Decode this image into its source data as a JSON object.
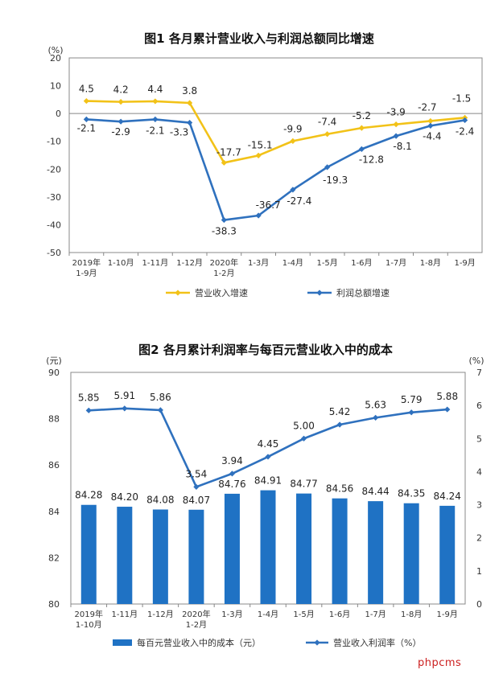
{
  "watermark": "phpcms",
  "chart_data": [
    {
      "type": "line",
      "title": "图1  各月累计营业收入与利润总额同比增速",
      "yunit": "(%)",
      "ylim": [
        -50,
        20
      ],
      "yticks": [
        20,
        10,
        0,
        -10,
        -20,
        -30,
        -40,
        -50
      ],
      "categories": [
        "2019年\n1-9月",
        "1-10月",
        "1-11月",
        "1-12月",
        "2020年\n1-2月",
        "1-3月",
        "1-4月",
        "1-5月",
        "1-6月",
        "1-7月",
        "1-8月",
        "1-9月"
      ],
      "series": [
        {
          "name": "营业收入增速",
          "color": "#f2c218",
          "values": [
            4.5,
            4.2,
            4.4,
            3.8,
            -17.7,
            -15.1,
            -9.9,
            -7.4,
            -5.2,
            -3.9,
            -2.7,
            -1.5
          ],
          "labels": [
            "4.5",
            "4.2",
            "4.4",
            "3.8",
            "-17.7",
            "-15.1",
            "-9.9",
            "-7.4",
            "-5.2",
            "-3.9",
            "-2.7",
            "-1.5"
          ]
        },
        {
          "name": "利润总额增速",
          "color": "#2f71be",
          "values": [
            -2.1,
            -2.9,
            -2.1,
            -3.3,
            -38.3,
            -36.7,
            -27.4,
            -19.3,
            -12.8,
            -8.1,
            -4.4,
            -2.4
          ],
          "labels": [
            "-2.1",
            "-2.9",
            "-2.1",
            "-3.3",
            "-38.3",
            "-36.7",
            "-27.4",
            "-19.3",
            "-12.8",
            "-8.1",
            "-4.4",
            "-2.4"
          ]
        }
      ],
      "grid": false,
      "legend": "bottom"
    },
    {
      "type": "bar+line",
      "title": "图2  各月累计利润率与每百元营业收入中的成本",
      "yunit_left": "(元)",
      "yunit_right": "(%)",
      "ylim_left": [
        80,
        90
      ],
      "yticks_left": [
        90,
        88,
        86,
        84,
        82,
        80
      ],
      "ylim_right": [
        0,
        7
      ],
      "yticks_right": [
        7,
        6,
        5,
        4,
        3,
        2,
        1,
        0
      ],
      "categories": [
        "2019年\n1-10月",
        "1-11月",
        "1-12月",
        "2020年\n1-2月",
        "1-3月",
        "1-4月",
        "1-5月",
        "1-6月",
        "1-7月",
        "1-8月",
        "1-9月"
      ],
      "series": [
        {
          "name": "每百元营业收入中的成本（元）",
          "type": "bar",
          "axis": "left",
          "color": "#1f72c4",
          "values": [
            84.28,
            84.2,
            84.08,
            84.07,
            84.76,
            84.91,
            84.77,
            84.56,
            84.44,
            84.35,
            84.24
          ],
          "labels": [
            "84.28",
            "84.20",
            "84.08",
            "84.07",
            "84.76",
            "84.91",
            "84.77",
            "84.56",
            "84.44",
            "84.35",
            "84.24"
          ]
        },
        {
          "name": "营业收入利润率（%）",
          "type": "line",
          "axis": "right",
          "color": "#2f71be",
          "values": [
            5.85,
            5.91,
            5.86,
            3.54,
            3.94,
            4.45,
            5.0,
            5.42,
            5.63,
            5.79,
            5.88
          ],
          "labels": [
            "5.85",
            "5.91",
            "5.86",
            "3.54",
            "3.94",
            "4.45",
            "5.00",
            "5.42",
            "5.63",
            "5.79",
            "5.88"
          ]
        }
      ],
      "grid": false,
      "legend": "bottom"
    }
  ]
}
